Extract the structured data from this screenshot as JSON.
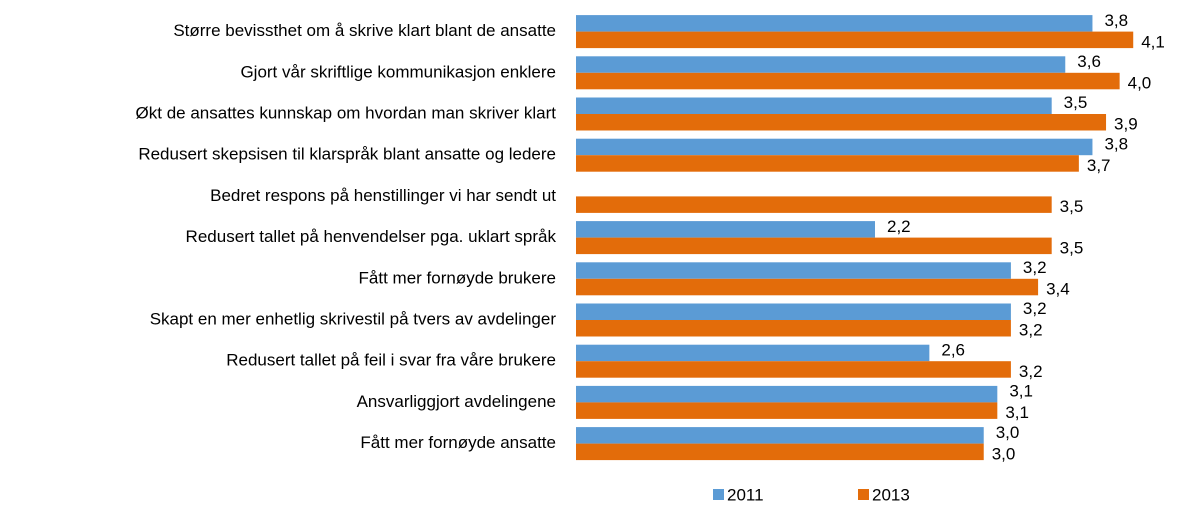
{
  "chart_data": {
    "type": "bar",
    "orientation": "horizontal",
    "categories": [
      "Større bevissthet om å skrive klart blant de ansatte",
      "Gjort vår skriftlige kommunikasjon enklere",
      "Økt de ansattes kunnskap om hvordan man skriver klart",
      "Redusert skepsisen til klarspråk blant ansatte og ledere",
      "Bedret respons på henstillinger vi har sendt ut",
      "Redusert tallet på henvendelser pga. uklart språk",
      "Fått mer fornøyde brukere",
      "Skapt en mer enhetlig skrivestil på tvers av avdelinger",
      "Redusert tallet på feil i svar fra våre brukere",
      "Ansvarliggjort avdelingene",
      "Fått mer fornøyde ansatte"
    ],
    "series": [
      {
        "name": "2011",
        "color": "#5B9BD5",
        "values": [
          3.8,
          3.6,
          3.5,
          3.8,
          null,
          2.2,
          3.2,
          3.2,
          2.6,
          3.1,
          3.0
        ],
        "value_labels": [
          "3,8",
          "3,6",
          "3,5",
          "3,8",
          null,
          "2,2",
          "3,2",
          "3,2",
          "2,6",
          "3,1",
          "3,0"
        ]
      },
      {
        "name": "2013",
        "color": "#E36C0A",
        "values": [
          4.1,
          4.0,
          3.9,
          3.7,
          3.5,
          3.5,
          3.4,
          3.2,
          3.2,
          3.1,
          3.0
        ],
        "value_labels": [
          "4,1",
          "4,0",
          "3,9",
          "3,7",
          "3,5",
          "3,5",
          "3,4",
          "3,2",
          "3,2",
          "3,1",
          "3,0"
        ]
      }
    ],
    "xlim": [
      0,
      4.4
    ],
    "legend": "bottom"
  }
}
